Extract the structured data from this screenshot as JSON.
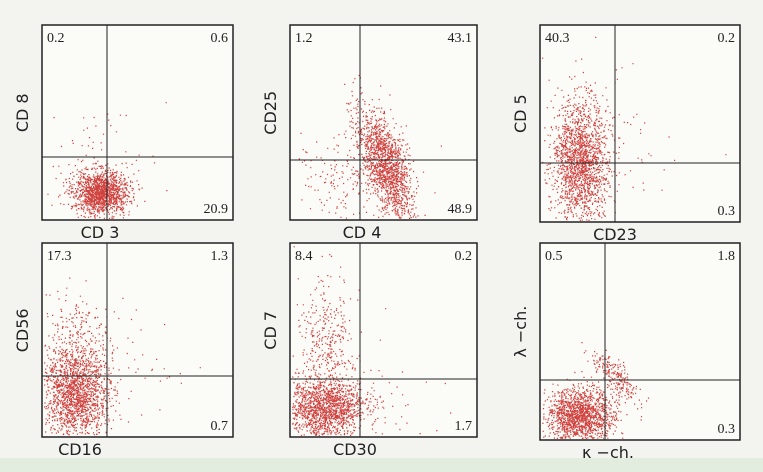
{
  "panels": [
    {
      "x_label": "CD 3",
      "y_label": "CD 8",
      "quadrants": {
        "top_left": "0.2",
        "top_right": "0.6",
        "bottom_right": "20.9"
      }
    },
    {
      "x_label": "CD 4",
      "y_label": "CD25",
      "quadrants": {
        "top_left": "1.2",
        "top_right": "43.1",
        "bottom_right": "48.9"
      }
    },
    {
      "x_label": "CD23",
      "y_label": "CD 5",
      "quadrants": {
        "top_left": "40.3",
        "top_right": "0.2",
        "bottom_right": "0.3"
      }
    },
    {
      "x_label": "CD16",
      "y_label": "CD56",
      "quadrants": {
        "top_left": "17.3",
        "top_right": "1.3",
        "bottom_right": "0.7"
      }
    },
    {
      "x_label": "CD30",
      "y_label": "CD 7",
      "quadrants": {
        "top_left": "8.4",
        "top_right": "0.2",
        "bottom_right": "1.7"
      }
    },
    {
      "x_label": "κ −ch.",
      "y_label": "λ −ch.",
      "quadrants": {
        "top_left": "0.5",
        "top_right": "1.8",
        "bottom_right": "0.3"
      }
    }
  ]
}
